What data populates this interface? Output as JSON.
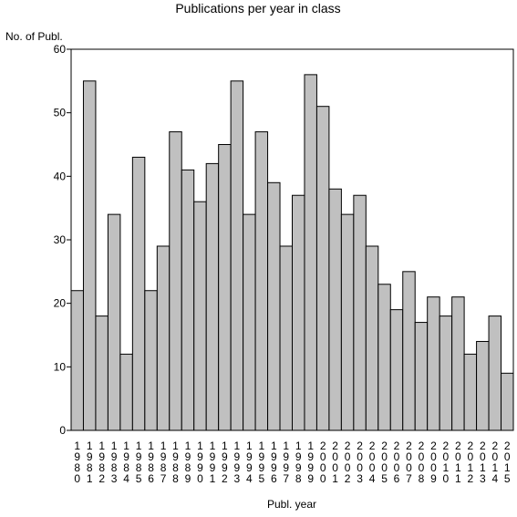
{
  "chart_data": {
    "type": "bar",
    "title": "Publications per year in class",
    "ylabel": "No. of Publ.",
    "xlabel": "Publ. year",
    "ylim": [
      0,
      60
    ],
    "yticks": [
      0,
      10,
      20,
      30,
      40,
      50,
      60
    ],
    "grid": false,
    "legend": "none",
    "bar_fill": "#c0c0c0",
    "bar_stroke": "#000000",
    "categories": [
      "1980",
      "1981",
      "1982",
      "1983",
      "1984",
      "1985",
      "1986",
      "1987",
      "1988",
      "1989",
      "1990",
      "1991",
      "1992",
      "1993",
      "1994",
      "1995",
      "1996",
      "1997",
      "1998",
      "1999",
      "2000",
      "2001",
      "2002",
      "2003",
      "2004",
      "2005",
      "2006",
      "2007",
      "2008",
      "2009",
      "2010",
      "2011",
      "2012",
      "2013",
      "2014",
      "2015"
    ],
    "values": [
      22,
      55,
      18,
      34,
      12,
      43,
      22,
      29,
      47,
      41,
      36,
      42,
      45,
      55,
      34,
      47,
      39,
      29,
      37,
      56,
      51,
      38,
      34,
      37,
      29,
      23,
      19,
      25,
      17,
      21,
      18,
      21,
      12,
      14,
      18,
      9
    ]
  }
}
